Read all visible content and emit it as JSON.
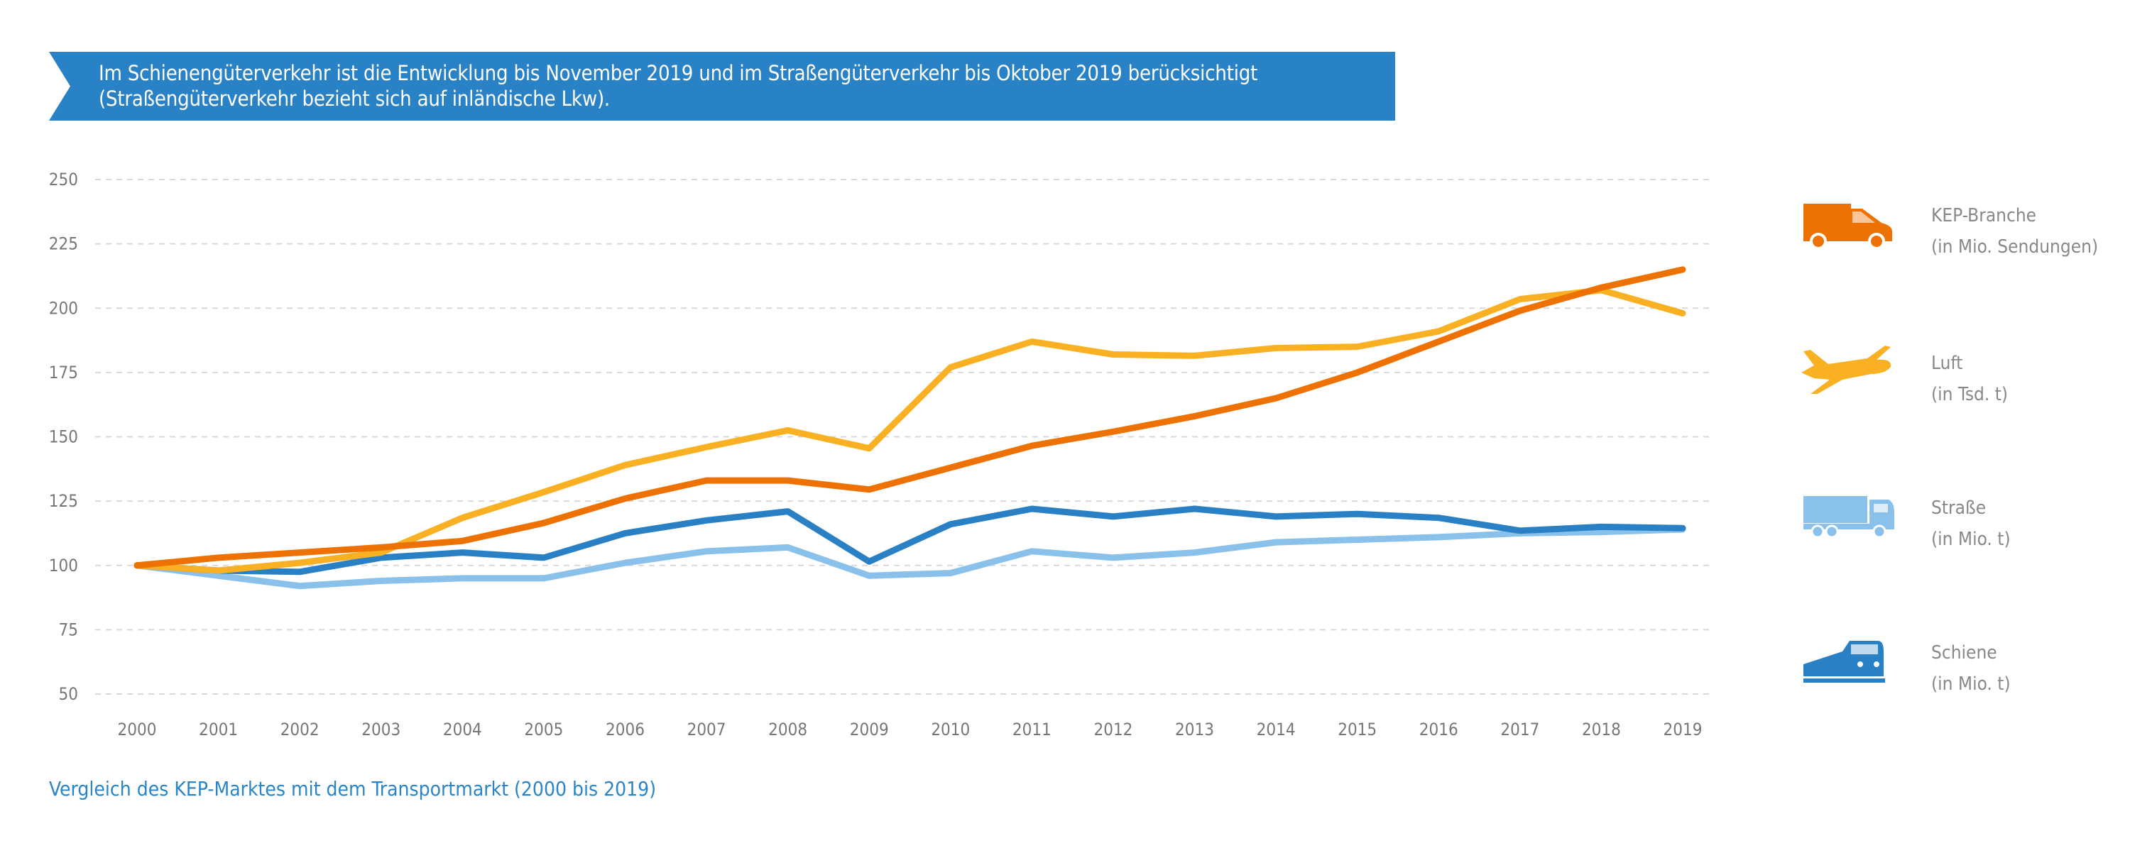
{
  "banner": {
    "line1": "Im Schienengüterverkehr ist die Entwicklung bis November 2019 und im Straßengüterverkehr bis Oktober 2019 berücksichtigt",
    "line2": "(Straßengüterverkehr bezieht sich auf inländische Lkw).",
    "color": "#2a82c6"
  },
  "caption": "Vergleich des KEP-Marktes mit dem Transportmarkt (2000 bis 2019)",
  "legend": [
    {
      "title": "KEP-Branche",
      "subtitle": "(in Mio. Sendungen)",
      "icon": "delivery-van-icon",
      "color": "#ee7203"
    },
    {
      "title": "Luft",
      "subtitle": "(in Tsd. t)",
      "icon": "airplane-icon",
      "color": "#f9b123"
    },
    {
      "title": "Straße",
      "subtitle": "(in Mio. t)",
      "icon": "truck-icon",
      "color": "#89c1eb"
    },
    {
      "title": "Schiene",
      "subtitle": "(in Mio. t)",
      "icon": "train-icon",
      "color": "#2a80c4"
    }
  ],
  "chart_data": {
    "type": "line",
    "title": "",
    "xlabel": "",
    "ylabel": "",
    "ylim": [
      50,
      250
    ],
    "yticks": [
      50,
      75,
      100,
      125,
      150,
      175,
      200,
      225,
      250
    ],
    "grid": "horizontal dashed",
    "legend_position": "right",
    "categories": [
      "2000",
      "2001",
      "2002",
      "2003",
      "2004",
      "2005",
      "2006",
      "2007",
      "2008",
      "2009",
      "2010",
      "2011",
      "2012",
      "2013",
      "2014",
      "2015",
      "2016",
      "2017",
      "2018",
      "2019"
    ],
    "series": [
      {
        "name": "KEP-Branche",
        "color": "#ee7203",
        "values": [
          100,
          103,
          105,
          107,
          109.5,
          116.5,
          126,
          133,
          133,
          129.5,
          138,
          146.5,
          152,
          158,
          165,
          175,
          187,
          199,
          208,
          215
        ]
      },
      {
        "name": "Luft",
        "color": "#f9b123",
        "values": [
          100,
          98,
          101,
          105,
          118.5,
          128.5,
          139,
          146,
          152.5,
          145.5,
          177,
          187,
          182,
          181.5,
          184.5,
          185,
          191,
          203.5,
          207,
          198
        ]
      },
      {
        "name": "Straße",
        "color": "#89c1eb",
        "values": [
          100,
          96,
          92,
          94,
          95,
          95,
          101,
          105.5,
          107,
          96,
          97,
          105.5,
          103,
          105,
          109,
          110,
          111,
          112.5,
          113,
          114
        ]
      },
      {
        "name": "Schiene",
        "color": "#2a80c4",
        "values": [
          100,
          98,
          97.5,
          103,
          105,
          103,
          112.5,
          117.5,
          121,
          101.5,
          116,
          122,
          119,
          122,
          119,
          120,
          118.5,
          113.5,
          115,
          114.5
        ]
      }
    ]
  }
}
